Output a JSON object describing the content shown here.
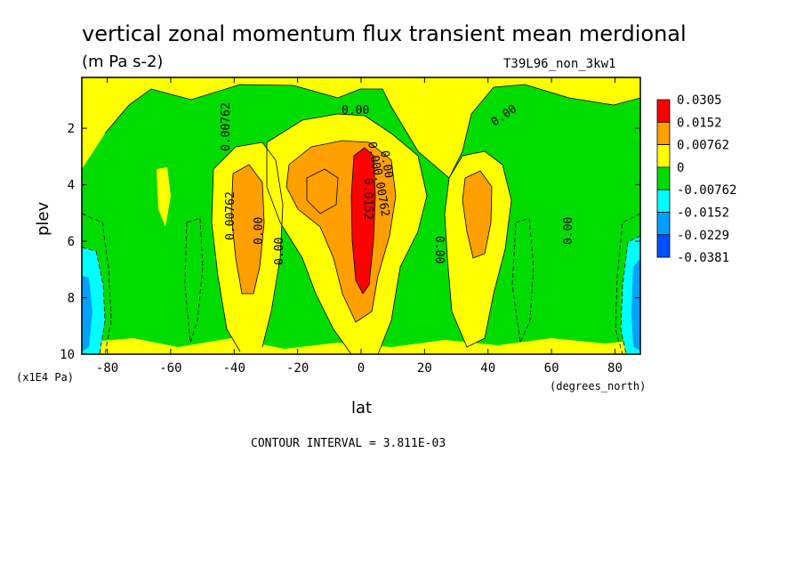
{
  "chart_data": {
    "type": "heatmap",
    "title": "vertical zonal momentum flux transient mean merdional",
    "units": "(m Pa s-2)",
    "run_label": "T39L96_non_3kw1",
    "xlabel": "lat",
    "x_units": "(degrees_north)",
    "ylabel": "plev",
    "y_units": "(x1E4 Pa)",
    "xlim": [
      -88,
      88
    ],
    "ylim": [
      10,
      0.2
    ],
    "x_ticks": [
      "-80",
      "-60",
      "-40",
      "-20",
      "0",
      "20",
      "40",
      "60",
      "80"
    ],
    "x_tick_values": [
      -80,
      -60,
      -40,
      -20,
      0,
      20,
      40,
      60,
      80
    ],
    "y_ticks": [
      "2",
      "4",
      "6",
      "8",
      "10"
    ],
    "y_tick_values": [
      2,
      4,
      6,
      8,
      10
    ],
    "contour_interval_text": "CONTOUR INTERVAL = 3.811E-03",
    "legend": {
      "placement": "right",
      "labels": [
        "0.0305",
        "0.0152",
        "0.00762",
        "0",
        "-0.00762",
        "-0.0152",
        "-0.0229",
        "-0.0381"
      ],
      "colors": [
        "#ff0000",
        "#ff9f00",
        "#ffff00",
        "#00dc00",
        "#00ffff",
        "#00a0ff",
        "#0050ff"
      ]
    },
    "contour_labels": [
      "0.00",
      "0.00",
      "0.00762",
      "0.00762",
      "0.00",
      "0.00",
      "0.00",
      "0.00",
      "0.00762",
      "0.0152",
      "0.00",
      "0.00"
    ],
    "features": [
      {
        "kind": "positive",
        "lat": 0,
        "plev": [
          2.7,
          8.5
        ],
        "max_level": "0.0305"
      },
      {
        "kind": "positive",
        "lat": -10,
        "plev": [
          3.0,
          6.5
        ],
        "max_level": "0.0152"
      },
      {
        "kind": "positive",
        "lat": -37,
        "plev": [
          3.5,
          8.5
        ],
        "max_level": "0.00762"
      },
      {
        "kind": "positive",
        "lat": 37,
        "plev": [
          3.8,
          6.8
        ],
        "max_level": "0.00762"
      },
      {
        "kind": "negative",
        "lat": -86,
        "plev": [
          6.3,
          10
        ],
        "min_level": "-0.0152"
      },
      {
        "kind": "negative",
        "lat": 86,
        "plev": [
          6.3,
          10
        ],
        "min_level": "-0.0152"
      }
    ]
  }
}
